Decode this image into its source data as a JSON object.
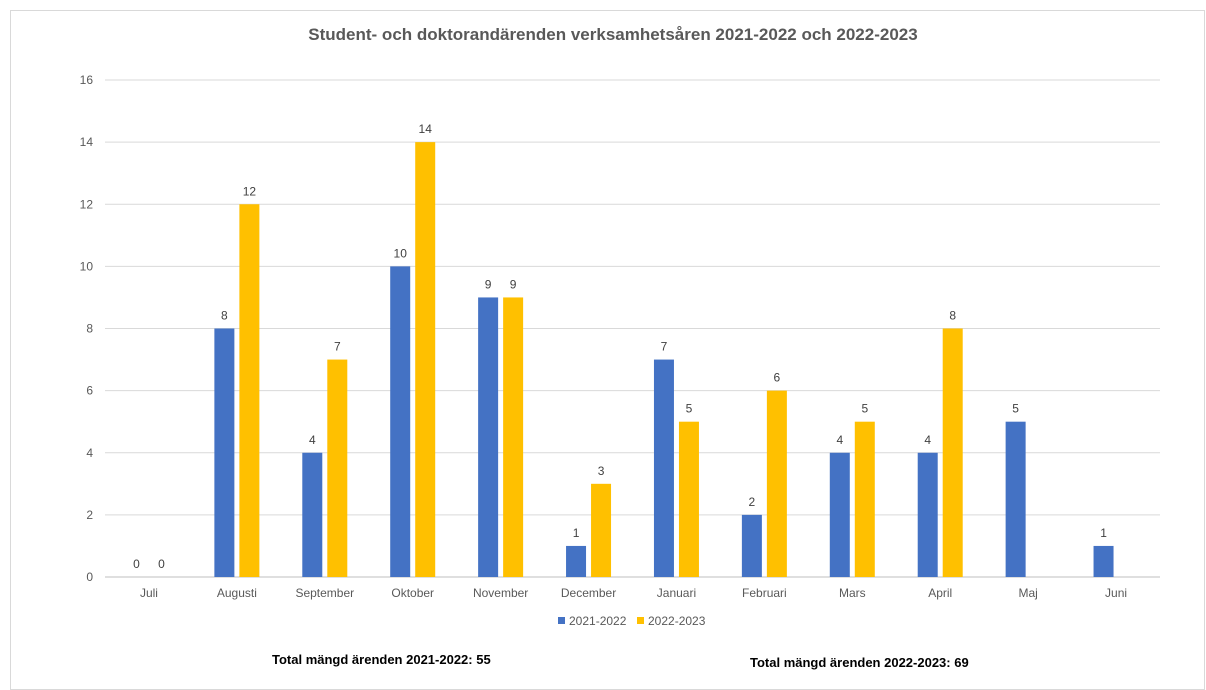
{
  "chart_data": {
    "type": "bar",
    "title": "Student- och doktorandärenden verksamhetsåren 2021-2022 och 2022-2023",
    "categories": [
      "Juli",
      "Augusti",
      "September",
      "Oktober",
      "November",
      "December",
      "Januari",
      "Februari",
      "Mars",
      "April",
      "Maj",
      "Juni"
    ],
    "series": [
      {
        "name": "2021-2022",
        "color": "#4472C4",
        "values": [
          0,
          8,
          4,
          10,
          9,
          1,
          7,
          2,
          4,
          4,
          5,
          1
        ]
      },
      {
        "name": "2022-2023",
        "color": "#FFC000",
        "values": [
          0,
          12,
          7,
          14,
          9,
          3,
          5,
          6,
          5,
          8,
          null,
          null
        ]
      }
    ],
    "ylim": [
      0,
      16
    ],
    "yticks": [
      0,
      2,
      4,
      6,
      8,
      10,
      12,
      14,
      16
    ],
    "grid": true,
    "legend_position": "bottom",
    "xlabel": "",
    "ylabel": ""
  },
  "totals": {
    "left": "Total mängd ärenden 2021-2022: 55",
    "right": "Total mängd ärenden 2022-2023: 69"
  }
}
